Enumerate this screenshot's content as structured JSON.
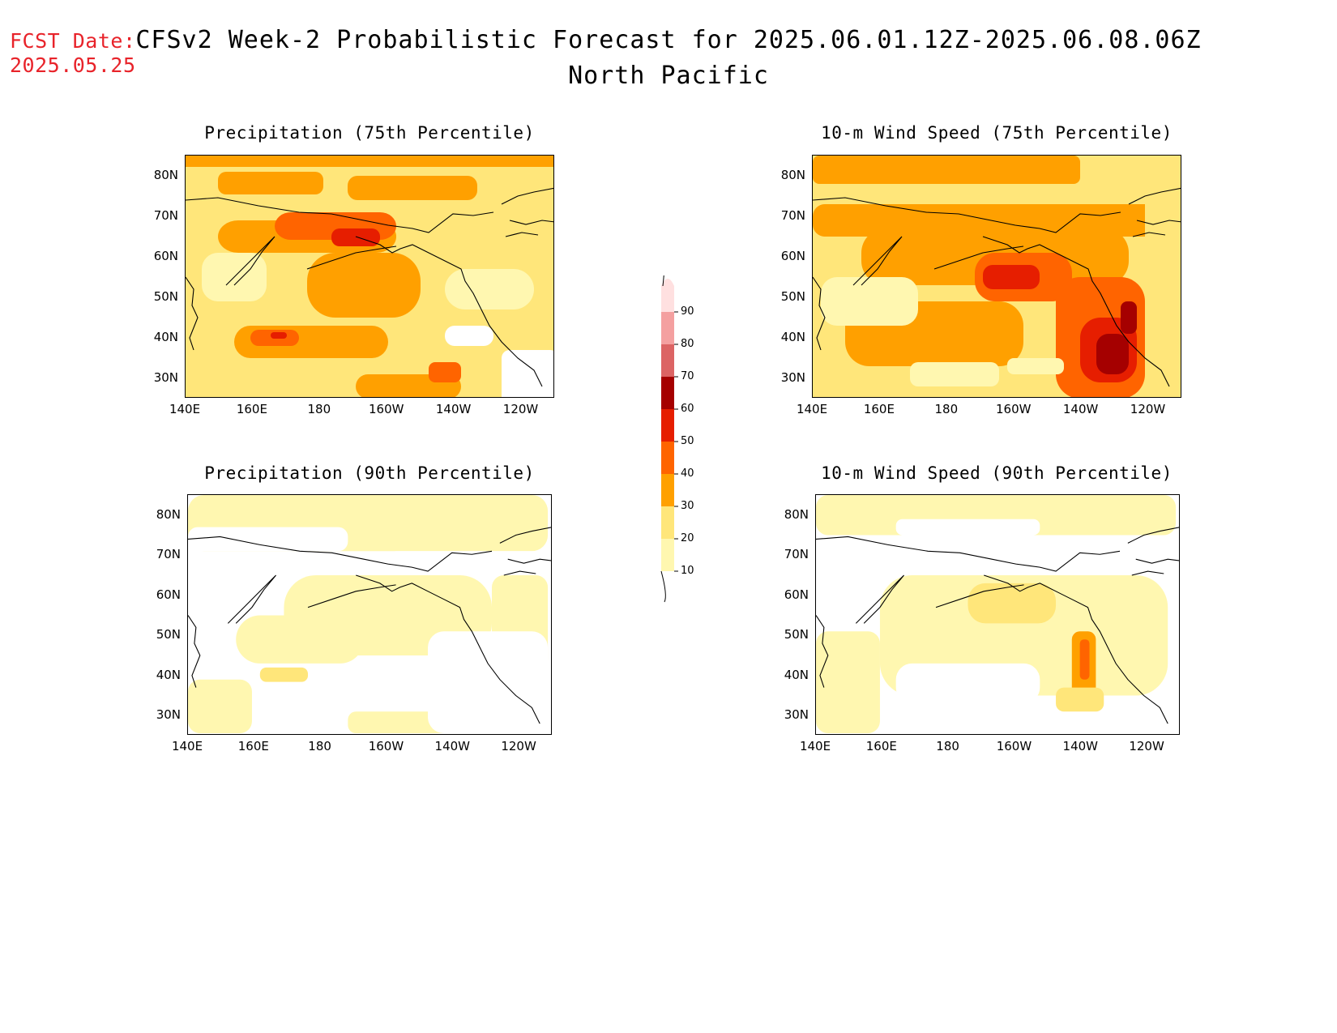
{
  "header": {
    "fcst_label": "FCST Date:",
    "fcst_date": "2025.05.25",
    "title": "CFSv2 Week-2 Probabilistic Forecast for 2025.06.01.12Z-2025.06.08.06Z",
    "subtitle": "North Pacific"
  },
  "axes": {
    "lat_labels": [
      "80N",
      "70N",
      "60N",
      "50N",
      "40N",
      "30N"
    ],
    "lon_labels": [
      "140E",
      "160E",
      "180",
      "160W",
      "140W",
      "120W"
    ]
  },
  "panels": [
    {
      "title": "Precipitation (75th Percentile)"
    },
    {
      "title": "10-m Wind Speed (75th Percentile)"
    },
    {
      "title": "Precipitation (90th Percentile)"
    },
    {
      "title": "10-m Wind Speed (90th Percentile)"
    }
  ],
  "colorbar": {
    "levels": [
      "10",
      "20",
      "30",
      "40",
      "50",
      "60",
      "70",
      "80",
      "90"
    ],
    "colors": [
      "#fff7b0",
      "#ffe67a",
      "#ffa000",
      "#ff6400",
      "#e61e00",
      "#a50000",
      "#dc6464",
      "#f4a0a0",
      "#ffe0e0"
    ]
  }
}
